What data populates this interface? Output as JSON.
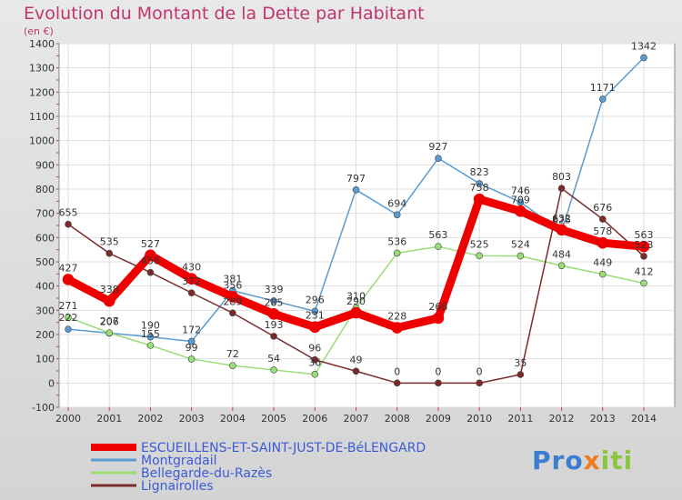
{
  "header": {
    "title": "Evolution du Montant de la Dette par Habitant",
    "unit": "(en €)"
  },
  "logo": {
    "text": "Proxiti"
  },
  "chart_data": {
    "type": "line",
    "title": "Evolution du Montant de la Dette par Habitant",
    "ylabel": "(en €)",
    "xlabel": "",
    "x": [
      2000,
      2001,
      2002,
      2003,
      2004,
      2005,
      2006,
      2007,
      2008,
      2009,
      2010,
      2011,
      2012,
      2013,
      2014
    ],
    "ylim": [
      -100,
      1400
    ],
    "yticks": [
      -100,
      0,
      100,
      200,
      300,
      400,
      500,
      600,
      700,
      800,
      900,
      1000,
      1100,
      1200,
      1300,
      1400
    ],
    "grid": true,
    "legend_position": "bottom-left",
    "series": [
      {
        "name": "ESCUEILLENS-ET-SAINT-JUST-DE-BéLENGARD",
        "color": "#ee0000",
        "values": [
          427,
          338,
          527,
          430,
          356,
          285,
          231,
          290,
          228,
          268,
          758,
          709,
          632,
          578,
          563
        ]
      },
      {
        "name": "Montgradail",
        "color": "#5a9bd0",
        "values": [
          222,
          206,
          190,
          172,
          381,
          339,
          296,
          797,
          694,
          927,
          823,
          746,
          625,
          1171,
          1342
        ]
      },
      {
        "name": "Bellegarde-du-Razès",
        "color": "#99dd77",
        "values": [
          271,
          207,
          155,
          99,
          72,
          54,
          36,
          310,
          536,
          563,
          525,
          524,
          484,
          449,
          412
        ]
      },
      {
        "name": "Lignairolles",
        "color": "#7a2a2a",
        "values": [
          655,
          535,
          456,
          372,
          289,
          193,
          96,
          49,
          0,
          0,
          0,
          35,
          803,
          676,
          523
        ]
      }
    ],
    "data_labels": [
      [
        "427",
        "338",
        "527",
        "430",
        "356",
        "285",
        "231",
        "290",
        "228",
        "268",
        "758",
        "709",
        "632",
        "578",
        "563"
      ],
      [
        "222",
        "206",
        "190",
        "172",
        "381",
        "339",
        "296",
        "797",
        "694",
        "927",
        "823",
        "746",
        "625",
        "1171",
        "1342"
      ],
      [
        "271",
        "207",
        "155",
        "99",
        "72",
        "54",
        "36",
        "310",
        "536",
        "563",
        "525",
        "524",
        "484",
        "449",
        "412"
      ],
      [
        "655",
        "535",
        "456",
        "372",
        "289",
        "193",
        "96",
        "49",
        "0",
        "0",
        "0",
        "35",
        "803",
        "676",
        "523"
      ]
    ]
  }
}
